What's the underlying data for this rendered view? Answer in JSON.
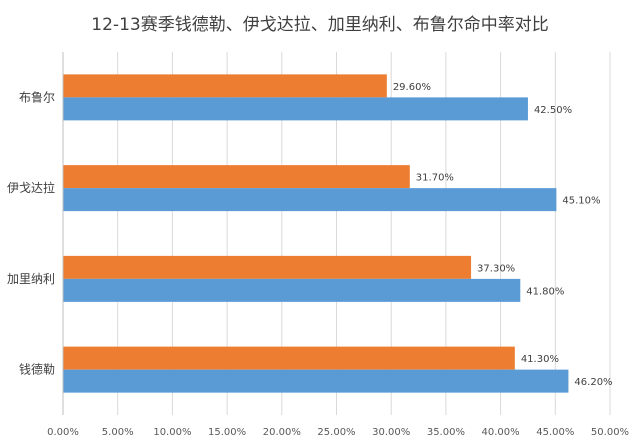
{
  "chart_data": {
    "type": "bar",
    "orientation": "horizontal",
    "title": "12-13赛季钱德勒、伊戈达拉、加里纳利、布鲁尔命中率对比",
    "categories": [
      "布鲁尔",
      "伊戈达拉",
      "加里纳利",
      "钱德勒"
    ],
    "series": [
      {
        "values": [
          29.6,
          31.7,
          37.3,
          41.3
        ],
        "labels": [
          "29.60%",
          "31.70%",
          "37.30%",
          "41.30%"
        ],
        "color": "#ED7D31"
      },
      {
        "values": [
          42.5,
          45.1,
          41.8,
          46.2
        ],
        "labels": [
          "42.50%",
          "45.10%",
          "41.80%",
          "46.20%"
        ],
        "color": "#5B9BD5"
      }
    ],
    "xlim": [
      0,
      50
    ],
    "xticks": [
      "0.00%",
      "5.00%",
      "10.00%",
      "15.00%",
      "20.00%",
      "25.00%",
      "30.00%",
      "35.00%",
      "40.00%",
      "45.00%",
      "50.00%"
    ],
    "grid": true,
    "legend": "none"
  }
}
